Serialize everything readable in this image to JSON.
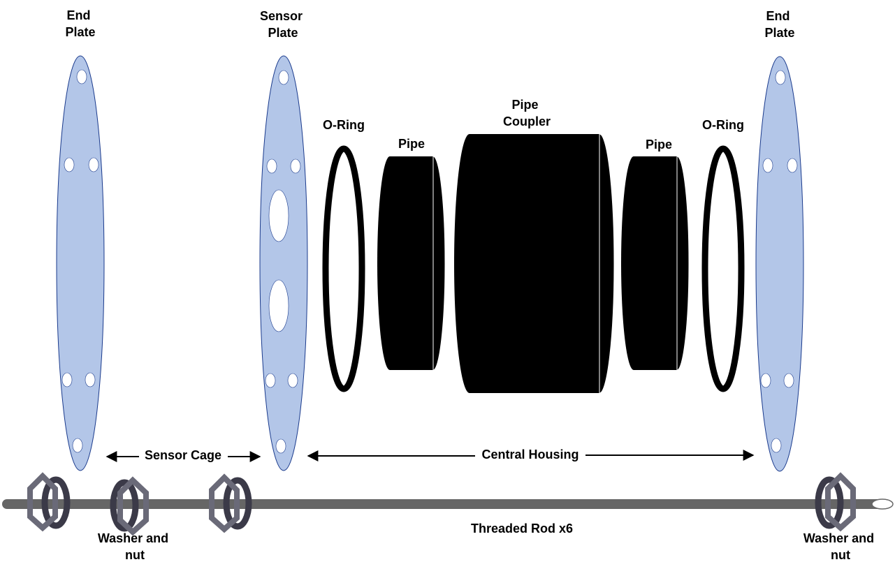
{
  "labels": {
    "end_plate_left": [
      "End",
      "Plate"
    ],
    "sensor_plate": [
      "Sensor",
      "Plate"
    ],
    "o_ring_left": "O-Ring",
    "pipe_left": "Pipe",
    "pipe_coupler": [
      "Pipe",
      "Coupler"
    ],
    "pipe_right": "Pipe",
    "o_ring_right": "O-Ring",
    "end_plate_right": [
      "End",
      "Plate"
    ],
    "sensor_cage": "Sensor Cage",
    "central_housing": "Central Housing",
    "threaded_rod": "Threaded Rod x6",
    "washer_nut_left": [
      "Washer and",
      "nut"
    ],
    "washer_nut_right": [
      "Washer and",
      "nut"
    ]
  },
  "colors": {
    "plate_fill": "#b3c6e8",
    "plate_stroke": "#1a3a8c",
    "rod": "#666666",
    "washer": "#3b3a48",
    "nut": "#6a6a78",
    "solid": "#000000"
  }
}
